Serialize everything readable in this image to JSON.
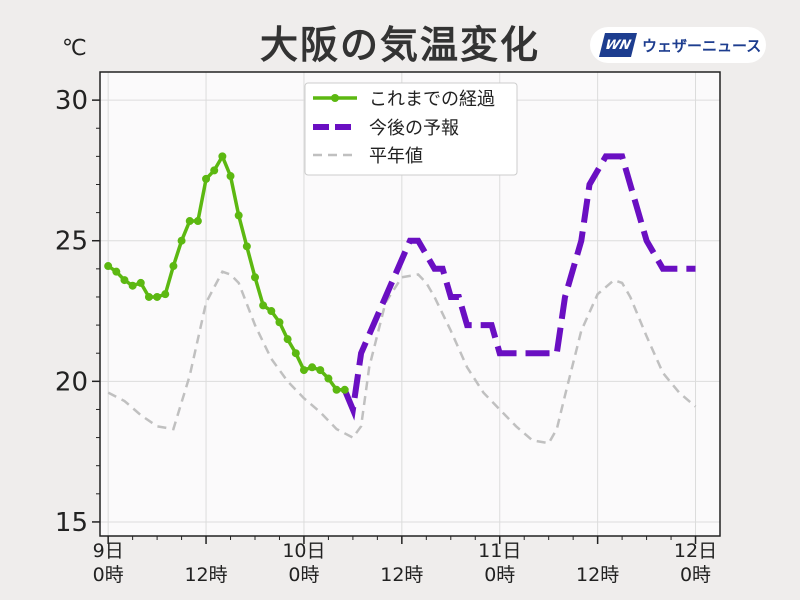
{
  "title": "大阪の気温変化",
  "unit": "℃",
  "logo": {
    "mark": "WN",
    "text": "ウェザーニュース"
  },
  "colors": {
    "observed": "#5cb811",
    "forecast": "#6a0fc2",
    "normal": "#c0c0c0"
  },
  "chart_data": {
    "type": "line",
    "title": "大阪の気温変化",
    "ylabel": "℃",
    "xlim": [
      -1,
      75
    ],
    "ylim": [
      14.5,
      31.0
    ],
    "yticks": [
      15,
      20,
      25,
      30
    ],
    "xticks": [
      {
        "x": 0,
        "line1": "9日",
        "line2": "0時"
      },
      {
        "x": 12,
        "line1": "",
        "line2": "12時"
      },
      {
        "x": 24,
        "line1": "10日",
        "line2": "0時"
      },
      {
        "x": 36,
        "line1": "",
        "line2": "12時"
      },
      {
        "x": 48,
        "line1": "11日",
        "line2": "0時"
      },
      {
        "x": 60,
        "line1": "",
        "line2": "12時"
      },
      {
        "x": 72,
        "line1": "12日",
        "line2": "0時"
      }
    ],
    "grid": true,
    "legend": "top-center",
    "series": [
      {
        "name": "これまでの経過",
        "style": "observed",
        "x": [
          0,
          1,
          2,
          3,
          4,
          5,
          6,
          7,
          8,
          9,
          10,
          11,
          12,
          13,
          14,
          15,
          16,
          17,
          18,
          19,
          20,
          21,
          22,
          23,
          24,
          25,
          26,
          27,
          28,
          29
        ],
        "y": [
          24.1,
          23.9,
          23.6,
          23.4,
          23.5,
          23.0,
          23.0,
          23.1,
          24.1,
          25.0,
          25.7,
          25.7,
          27.2,
          27.5,
          28.0,
          27.3,
          25.9,
          24.8,
          23.7,
          22.7,
          22.5,
          22.1,
          21.5,
          21.0,
          20.4,
          20.5,
          20.4,
          20.1,
          19.7,
          19.7
        ]
      },
      {
        "name": "今後の予報",
        "style": "forecast",
        "x": [
          29,
          30,
          31,
          34,
          37,
          38,
          40,
          41,
          42,
          43,
          44,
          47,
          48,
          51,
          55,
          56,
          58,
          59,
          61,
          63,
          65,
          66,
          68,
          71,
          72
        ],
        "y": [
          19.7,
          19.0,
          21.0,
          23.0,
          25.0,
          25.0,
          24.0,
          24.0,
          23.0,
          23.0,
          22.0,
          22.0,
          21.0,
          21.0,
          21.0,
          23.0,
          25.0,
          27.0,
          28.0,
          28.0,
          26.0,
          25.0,
          24.0,
          24.0,
          24.0
        ]
      },
      {
        "name": "平年値",
        "style": "normal",
        "x": [
          0,
          2,
          4,
          6,
          8,
          10,
          12,
          14,
          15,
          16,
          18,
          20,
          22,
          24,
          26,
          28,
          30,
          31,
          32,
          34,
          36,
          38,
          39,
          40,
          42,
          44,
          46,
          48,
          50,
          52,
          54,
          55,
          56,
          58,
          60,
          62,
          63,
          64,
          66,
          68,
          70,
          72
        ],
        "y": [
          19.6,
          19.3,
          18.8,
          18.4,
          18.3,
          20.2,
          22.8,
          23.9,
          23.8,
          23.5,
          22.0,
          20.8,
          20.0,
          19.4,
          18.9,
          18.3,
          18.0,
          18.4,
          20.5,
          22.8,
          23.7,
          23.8,
          23.5,
          23.0,
          21.8,
          20.5,
          19.6,
          19.0,
          18.4,
          17.9,
          17.8,
          18.3,
          19.5,
          21.8,
          23.1,
          23.6,
          23.5,
          23.0,
          21.6,
          20.3,
          19.6,
          19.1
        ]
      }
    ]
  }
}
